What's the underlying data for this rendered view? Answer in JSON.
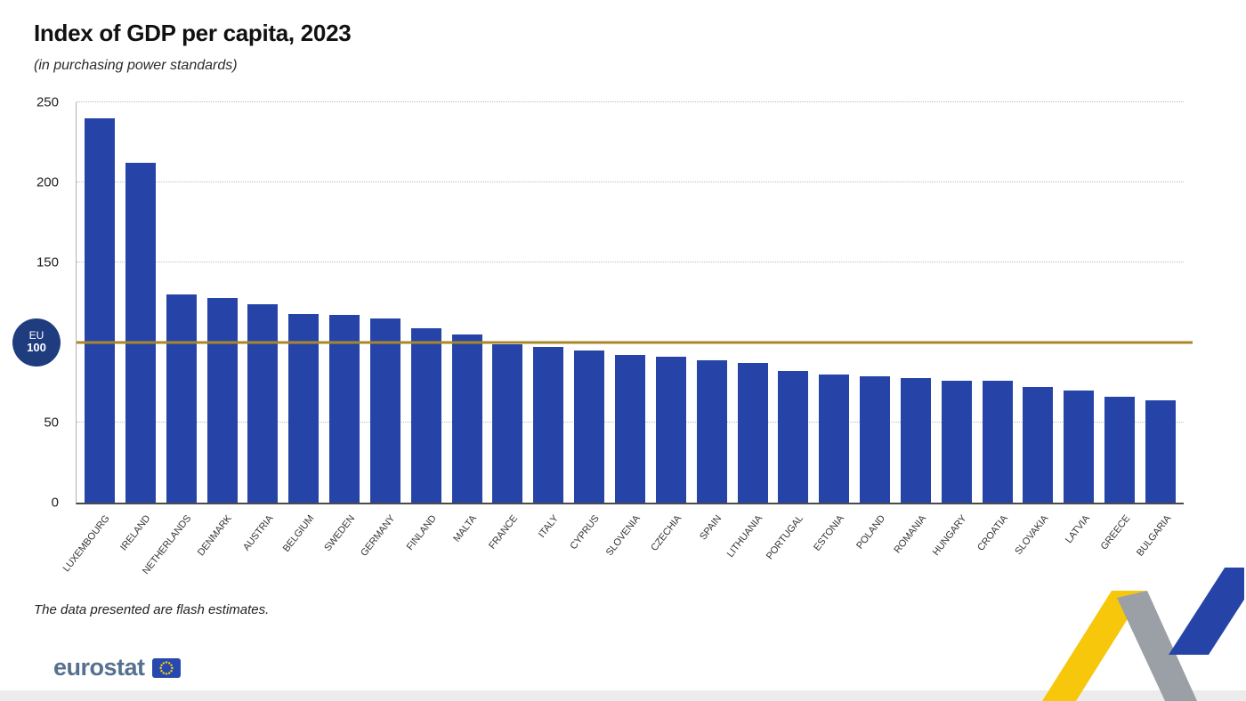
{
  "chart_data": {
    "type": "bar",
    "title": "Index of GDP per capita, 2023",
    "subtitle": "(in purchasing power standards)",
    "categories": [
      "LUXEMBOURG",
      "IRELAND",
      "NETHERLANDS",
      "DENMARK",
      "AUSTRIA",
      "BELGIUM",
      "SWEDEN",
      "GERMANY",
      "FINLAND",
      "MALTA",
      "FRANCE",
      "ITALY",
      "CYPRUS",
      "SLOVENIA",
      "CZECHIA",
      "SPAIN",
      "LITHUANIA",
      "PORTUGAL",
      "ESTONIA",
      "POLAND",
      "ROMANIA",
      "HUNGARY",
      "CROATIA",
      "SLOVAKIA",
      "LATVIA",
      "GREECE",
      "BULGARIA"
    ],
    "values": [
      240,
      212,
      130,
      128,
      124,
      118,
      117,
      115,
      109,
      105,
      99,
      97,
      95,
      92,
      91,
      89,
      87,
      82,
      80,
      79,
      78,
      76,
      76,
      72,
      70,
      66,
      64
    ],
    "xlabel": "",
    "ylabel": "",
    "ylim": [
      0,
      250
    ],
    "yticks": [
      0,
      50,
      100,
      150,
      200,
      250
    ],
    "grid": "horizontal-dotted",
    "legend_position": "none",
    "bar_color": "#2644a7",
    "reference_line": {
      "value": 100,
      "color": "#a8872b",
      "badge": {
        "line1": "EU",
        "line2": "100",
        "bg": "#1f3d7e"
      }
    },
    "footnote": "The data presented are flash estimates."
  },
  "footer": {
    "logo_text": "eurostat"
  },
  "colors": {
    "accent_blue": "#2644a7",
    "accent_yellow": "#f6c70b",
    "accent_gray": "#9aa0a6",
    "logo_text": "#56718f"
  }
}
